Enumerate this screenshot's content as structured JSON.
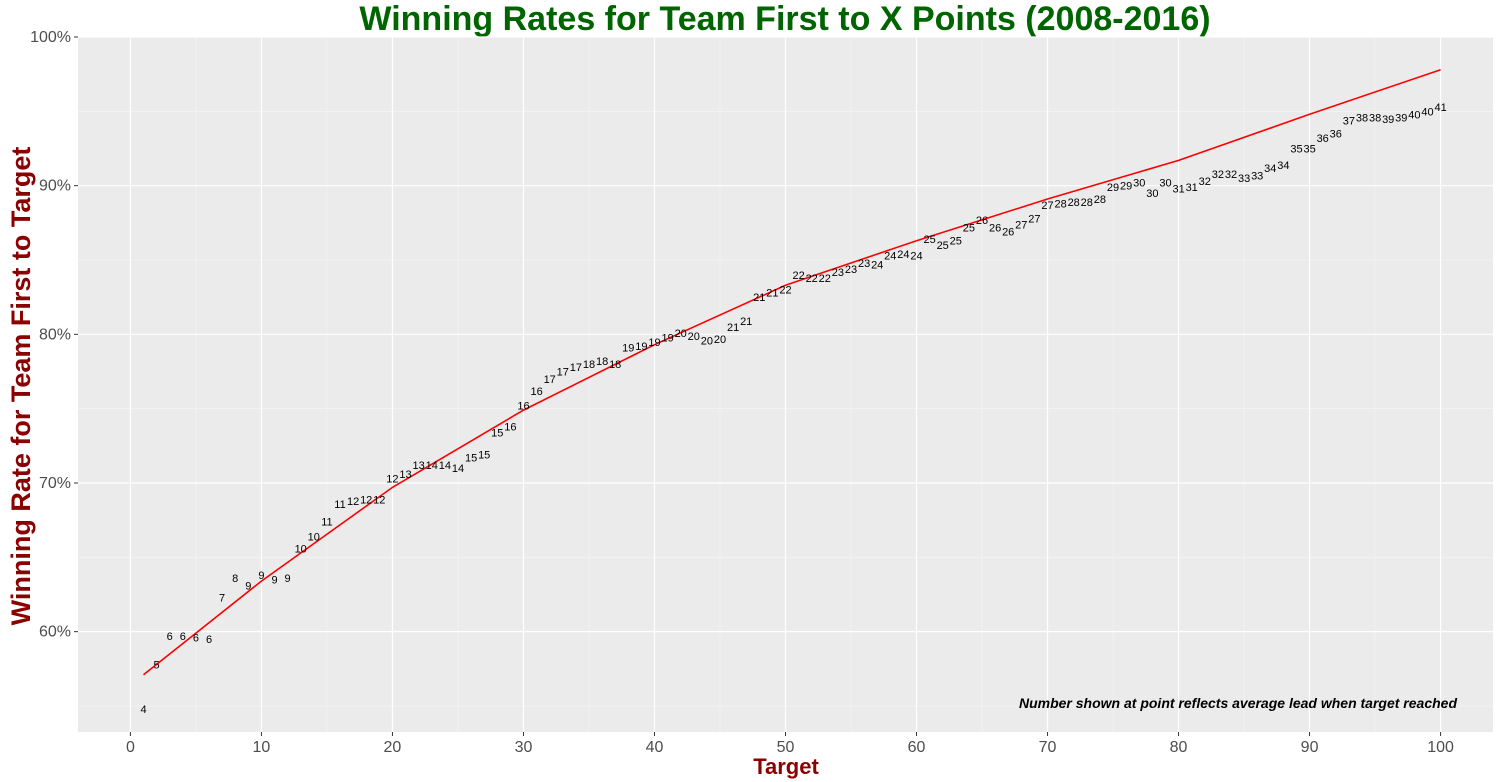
{
  "chart_data": {
    "type": "scatter",
    "title": "Winning Rates for Team First to X Points (2008-2016)",
    "xlabel": "Target",
    "ylabel": "Winning Rate for Team First to Target",
    "xlim": [
      -4,
      104
    ],
    "ylim": [
      0.5325,
      1.0
    ],
    "x_ticks": [
      0,
      10,
      20,
      30,
      40,
      50,
      60,
      70,
      80,
      90,
      100
    ],
    "y_ticks": [
      0.6,
      0.7,
      0.8,
      0.9,
      1.0
    ],
    "y_tick_labels": [
      "60%",
      "70%",
      "80%",
      "90%",
      "100%"
    ],
    "grid": true,
    "annotation": "Number shown at point reflects average lead when target reached",
    "colors": {
      "title": "#006400",
      "axis_title": "#8b0000",
      "trend_line": "#ff0000",
      "panel": "#ebebeb",
      "gridline": "#ffffff"
    },
    "trend_line": {
      "x": [
        1,
        10,
        20,
        30,
        40,
        50,
        60,
        70,
        80,
        90,
        100
      ],
      "y": [
        0.571,
        0.634,
        0.697,
        0.749,
        0.793,
        0.833,
        0.863,
        0.891,
        0.917,
        0.948,
        0.978
      ]
    },
    "points": {
      "x": [
        1,
        2,
        3,
        4,
        5,
        6,
        7,
        8,
        9,
        10,
        11,
        12,
        13,
        14,
        15,
        16,
        17,
        18,
        19,
        20,
        21,
        22,
        23,
        24,
        25,
        26,
        27,
        28,
        29,
        30,
        31,
        32,
        33,
        34,
        35,
        36,
        37,
        38,
        39,
        40,
        41,
        42,
        43,
        44,
        45,
        46,
        47,
        48,
        49,
        50,
        51,
        52,
        53,
        54,
        55,
        56,
        57,
        58,
        59,
        60,
        61,
        62,
        63,
        64,
        65,
        66,
        67,
        68,
        69,
        70,
        71,
        72,
        73,
        74,
        75,
        76,
        77,
        78,
        79,
        80,
        81,
        82,
        83,
        84,
        85,
        86,
        87,
        88,
        89,
        90,
        91,
        92,
        93,
        94,
        95,
        96,
        97,
        98,
        99,
        100
      ],
      "y": [
        0.548,
        0.578,
        0.597,
        0.597,
        0.596,
        0.595,
        0.623,
        0.636,
        0.631,
        0.638,
        0.635,
        0.636,
        0.656,
        0.664,
        0.674,
        0.686,
        0.688,
        0.689,
        0.689,
        0.703,
        0.706,
        0.712,
        0.712,
        0.712,
        0.71,
        0.717,
        0.719,
        0.734,
        0.738,
        0.752,
        0.762,
        0.77,
        0.775,
        0.778,
        0.78,
        0.782,
        0.78,
        0.791,
        0.792,
        0.795,
        0.798,
        0.801,
        0.799,
        0.796,
        0.797,
        0.805,
        0.809,
        0.825,
        0.828,
        0.83,
        0.84,
        0.838,
        0.838,
        0.842,
        0.844,
        0.848,
        0.847,
        0.853,
        0.854,
        0.853,
        0.864,
        0.86,
        0.863,
        0.872,
        0.877,
        0.872,
        0.869,
        0.874,
        0.878,
        0.887,
        0.888,
        0.889,
        0.889,
        0.891,
        0.899,
        0.9,
        0.902,
        0.895,
        0.902,
        0.898,
        0.899,
        0.903,
        0.908,
        0.908,
        0.905,
        0.907,
        0.912,
        0.914,
        0.925,
        0.925,
        0.932,
        0.935,
        0.944,
        0.946,
        0.946,
        0.945,
        0.946,
        0.948,
        0.95,
        0.953
      ],
      "labels": [
        "4",
        "5",
        "6",
        "6",
        "6",
        "6",
        "7",
        "8",
        "9",
        "9",
        "9",
        "9",
        "10",
        "10",
        "11",
        "11",
        "12",
        "12",
        "12",
        "12",
        "13",
        "13",
        "14",
        "14",
        "14",
        "15",
        "15",
        "15",
        "16",
        "16",
        "16",
        "17",
        "17",
        "17",
        "18",
        "18",
        "18",
        "19",
        "19",
        "19",
        "19",
        "20",
        "20",
        "20",
        "20",
        "21",
        "21",
        "21",
        "21",
        "22",
        "22",
        "22",
        "22",
        "23",
        "23",
        "23",
        "24",
        "24",
        "24",
        "24",
        "25",
        "25",
        "25",
        "25",
        "26",
        "26",
        "26",
        "27",
        "27",
        "27",
        "28",
        "28",
        "28",
        "28",
        "29",
        "29",
        "30",
        "30",
        "30",
        "31",
        "31",
        "32",
        "32",
        "32",
        "33",
        "33",
        "34",
        "34",
        "35",
        "35",
        "36",
        "36",
        "37",
        "38",
        "38",
        "39",
        "39",
        "40",
        "40",
        "41"
      ]
    }
  }
}
